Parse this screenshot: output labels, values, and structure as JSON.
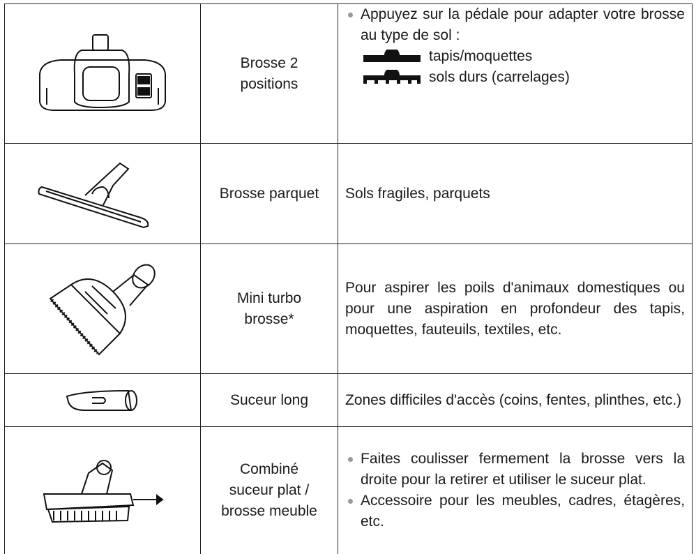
{
  "table": {
    "rows": [
      {
        "name": [
          "Brosse 2",
          "positions"
        ],
        "description": {
          "bullets": [
            "Appuyez sur la pédale pour adapter votre brosse au type de sol :"
          ],
          "legend": [
            "tapis/moquettes",
            "sols durs (carrelages)"
          ]
        }
      },
      {
        "name": [
          "Brosse parquet"
        ],
        "description": {
          "text": "Sols fragiles, parquets"
        }
      },
      {
        "name": [
          "Mini turbo",
          "brosse*"
        ],
        "description": {
          "text": "Pour aspirer les poils d'animaux domestiques ou pour une aspiration en profondeur des tapis, moquettes, fauteuils, textiles, etc."
        }
      },
      {
        "name": [
          "Suceur long"
        ],
        "description": {
          "text": "Zones difficiles d'accès (coins, fentes, plinthes, etc.)"
        }
      },
      {
        "name": [
          "Combiné",
          "suceur plat /",
          "brosse meuble"
        ],
        "description": {
          "bullets": [
            "Faites coulisser fermement la brosse vers la droite pour la retirer et utiliser le suceur plat.",
            "Accessoire pour les meubles, cadres, étagères, etc."
          ]
        }
      }
    ]
  }
}
